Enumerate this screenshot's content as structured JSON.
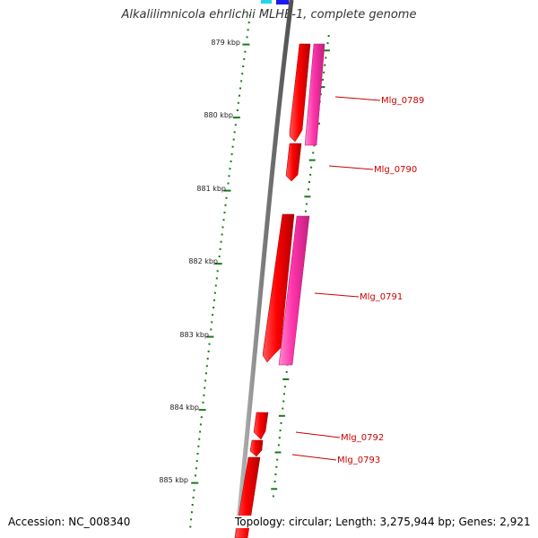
{
  "title": "Alkalilimnicola ehrlichii MLHE-1, complete genome",
  "scale_ticks": [
    "879 kbp",
    "880 kbp",
    "881 kbp",
    "882 kbp",
    "883 kbp",
    "884 kbp",
    "885 kbp"
  ],
  "genes": [
    {
      "label": "Mlg_0789",
      "color": "#ff0000"
    },
    {
      "label": "Mlg_0790",
      "color": "#ff0000"
    },
    {
      "label": "Mlg_0791",
      "color": "#ff0000"
    },
    {
      "label": "Mlg_0792",
      "color": "#ff0000"
    },
    {
      "label": "Mlg_0793",
      "color": "#ff0000"
    }
  ],
  "colors": {
    "gene_forward": "#ff0000",
    "gene_overlay": "#ff33aa",
    "backbone": "#808080",
    "ticks": "#1a7a1a",
    "label": "#cc0000"
  },
  "footer": {
    "accession": "Accession: NC_008340",
    "summary": "Topology: circular; Length: 3,275,944 bp; Genes: 2,921"
  }
}
